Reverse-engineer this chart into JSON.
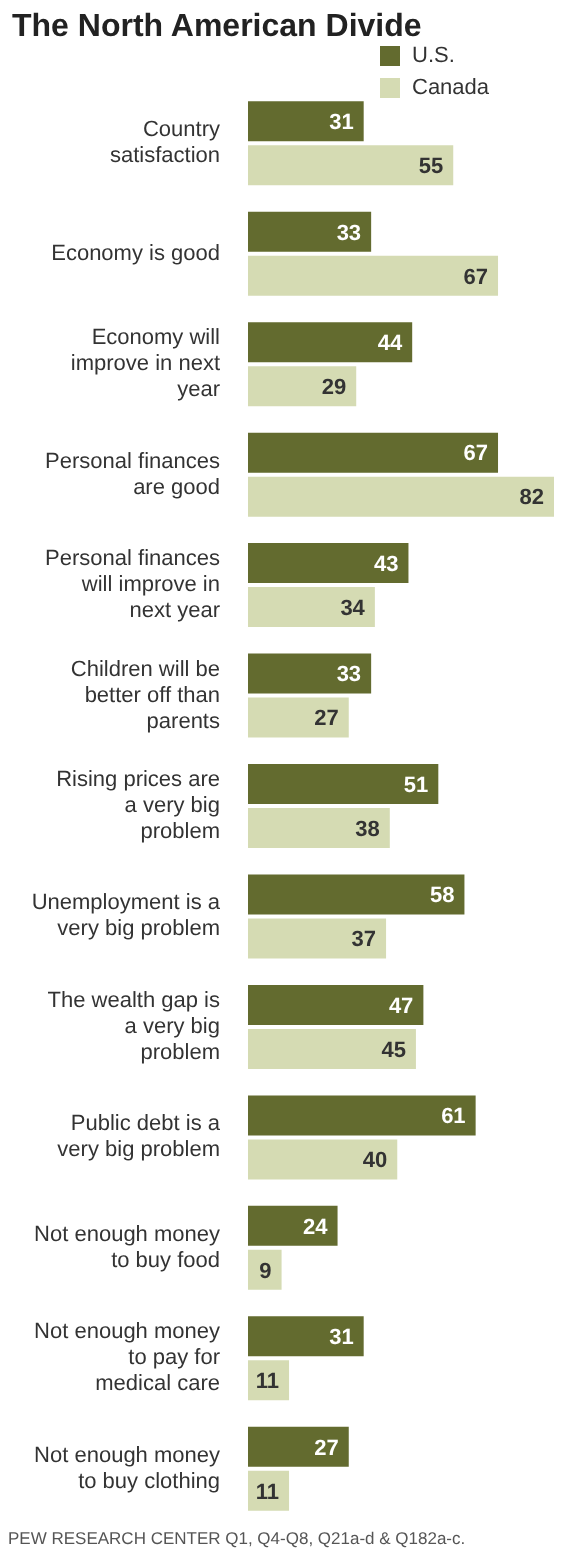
{
  "chart_data": {
    "type": "bar",
    "orientation": "horizontal",
    "title": "The North American Divide",
    "categories": [
      "Country satisfaction",
      "Economy is good",
      "Economy will improve in next year",
      "Personal finances are good",
      "Personal finances will improve in next year",
      "Children will be better off than parents",
      "Rising prices are a very big problem",
      "Unemployment is a very big problem",
      "The wealth gap is a very big problem",
      "Public debt is a very big problem",
      "Not enough money to buy food",
      "Not enough money to pay for medical care",
      "Not enough money to buy clothing"
    ],
    "series": [
      {
        "name": "U.S.",
        "color": "#636b2f",
        "values": [
          31,
          33,
          44,
          67,
          43,
          33,
          51,
          58,
          47,
          61,
          24,
          31,
          27
        ]
      },
      {
        "name": "Canada",
        "color": "#d5dbb3",
        "values": [
          55,
          67,
          29,
          82,
          34,
          27,
          38,
          37,
          45,
          40,
          9,
          11,
          11
        ]
      }
    ],
    "data_labels": true,
    "legend": "top right",
    "annotations": [
      "PEW RESEARCH CENTER Q1, Q4-Q8, Q21a-d & Q182a-c."
    ]
  }
}
